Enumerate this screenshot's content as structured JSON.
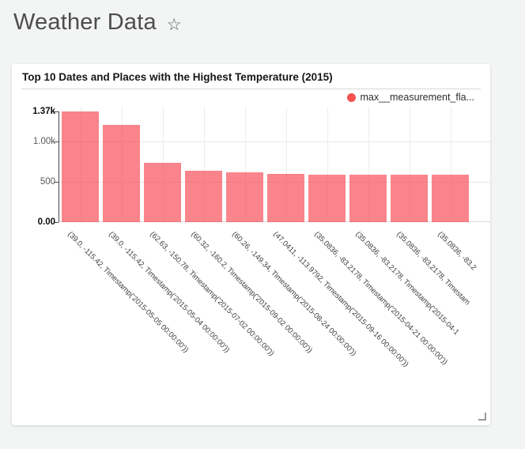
{
  "page": {
    "background": "#f3f4f4",
    "header": {
      "title": "Weather Data",
      "favorite_icon": "star-outline"
    }
  },
  "widget": {
    "title": "Top 10 Dates and Places with the Highest Temperature (2015)",
    "legend": {
      "items": [
        {
          "label": "max__measurement_fla...",
          "color": "#f4534e"
        }
      ]
    },
    "resize_handle_icon": "resize-grip"
  },
  "chart_data": {
    "type": "bar",
    "title": "Top 10 Dates and Places with the Highest Temperature (2015)",
    "legend_position": "top-right",
    "grid": true,
    "x_tick_rotation_deg": 45,
    "ylim": [
      0,
      1370
    ],
    "yticks": [
      {
        "label": "0.00",
        "value": 0,
        "bold": true
      },
      {
        "label": "500",
        "value": 500,
        "bold": false
      },
      {
        "label": "1.00k",
        "value": 1000,
        "bold": false
      },
      {
        "label": "1.37k",
        "value": 1370,
        "bold": true
      }
    ],
    "categories": [
      "(39.0, -115.42, Timestamp('2015-05-05 00:00:00'))",
      "(39.0, -115.42, Timestamp('2015-05-04 00:00:00'))",
      "(62.63, -150.78, Timestamp('2015-07-02 00:00:00'))",
      "(60.32, -160.2, Timestamp('2015-09-02 00:00:00'))",
      "(60.26, -149.34, Timestamp('2015-08-24 00:00:00'))",
      "(47.0411, -113.9792, Timestamp('2015-09-16 00:00:00'))",
      "(35.0836, -83.2178, Timestamp('2015-04-21 00:00:00'))",
      "(35.0836, -83.2178, Timestamp('2015-04-1",
      "(35.0836, -83.2178, Timestam",
      "(35.0836, -83.2"
    ],
    "series": [
      {
        "name": "max__measurement_fla...",
        "color": "rgba(247,66,77,0.65)",
        "values": [
          1370,
          1200,
          730,
          640,
          620,
          600,
          590,
          590,
          590,
          590
        ]
      }
    ]
  }
}
